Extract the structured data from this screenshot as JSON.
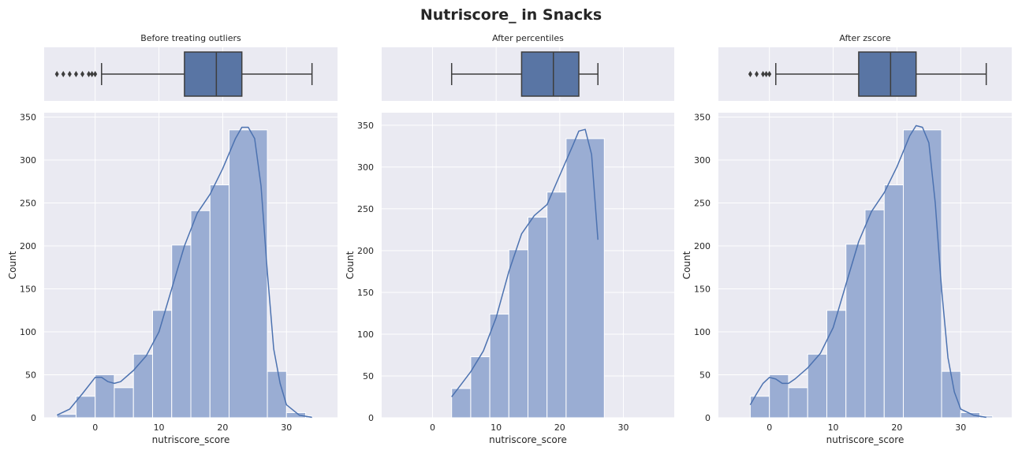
{
  "figure": {
    "suptitle": "Nutriscore_ in Snacks",
    "colors": {
      "background": "#eaeaf2",
      "grid": "#ffffff",
      "box_fill": "#5975a4",
      "box_edge": "#3d3d3d",
      "hist_fill": "#9aadd3",
      "kde_line": "#4c72b0"
    }
  },
  "chart_data": [
    {
      "type": "boxplot",
      "title": "Before treating outliers",
      "xlim": [
        -8,
        38
      ],
      "xticks": [
        0,
        10,
        20,
        30
      ],
      "box": {
        "whisker_low": 1,
        "q1": 14,
        "median": 19,
        "q3": 23,
        "whisker_high": 34
      },
      "outliers": [
        -6,
        -5,
        -4,
        -3,
        -2,
        -1,
        -0.5,
        0
      ]
    },
    {
      "type": "boxplot",
      "title": "After percentiles",
      "xlim": [
        -8,
        38
      ],
      "xticks": [
        0,
        10,
        20,
        30
      ],
      "box": {
        "whisker_low": 3,
        "q1": 14,
        "median": 19,
        "q3": 23,
        "whisker_high": 26
      },
      "outliers": []
    },
    {
      "type": "boxplot",
      "title": "After zscore",
      "xlim": [
        -8,
        38
      ],
      "xticks": [
        0,
        10,
        20,
        30
      ],
      "box": {
        "whisker_low": 1,
        "q1": 14,
        "median": 19,
        "q3": 23,
        "whisker_high": 34
      },
      "outliers": [
        -3,
        -2,
        -1,
        -0.5,
        0
      ]
    },
    {
      "type": "bar",
      "subtype": "histogram_with_kde",
      "xlabel": "nutriscore_score",
      "ylabel": "Count",
      "xlim": [
        -8,
        38
      ],
      "ylim": [
        0,
        355
      ],
      "xticks": [
        0,
        10,
        20,
        30
      ],
      "yticks": [
        0,
        50,
        100,
        150,
        200,
        250,
        300,
        350
      ],
      "bins": [
        {
          "x0": -6,
          "x1": -3,
          "count": 4
        },
        {
          "x0": -3,
          "x1": 0,
          "count": 25
        },
        {
          "x0": 0,
          "x1": 3,
          "count": 50
        },
        {
          "x0": 3,
          "x1": 6,
          "count": 35
        },
        {
          "x0": 6,
          "x1": 9,
          "count": 74
        },
        {
          "x0": 9,
          "x1": 12,
          "count": 125
        },
        {
          "x0": 12,
          "x1": 15,
          "count": 201
        },
        {
          "x0": 15,
          "x1": 18,
          "count": 241
        },
        {
          "x0": 18,
          "x1": 21,
          "count": 271
        },
        {
          "x0": 21,
          "x1": 27,
          "count": 335
        },
        {
          "x0": 27,
          "x1": 30,
          "count": 54
        },
        {
          "x0": 30,
          "x1": 33,
          "count": 6
        },
        {
          "x0": 33,
          "x1": 34,
          "count": 2
        }
      ],
      "kde": [
        [
          -6,
          3
        ],
        [
          -4,
          10
        ],
        [
          -2,
          28
        ],
        [
          0,
          47
        ],
        [
          1,
          47
        ],
        [
          2,
          42
        ],
        [
          3,
          40
        ],
        [
          4,
          42
        ],
        [
          6,
          55
        ],
        [
          8,
          72
        ],
        [
          10,
          100
        ],
        [
          12,
          150
        ],
        [
          14,
          200
        ],
        [
          16,
          238
        ],
        [
          18,
          260
        ],
        [
          20,
          290
        ],
        [
          22,
          325
        ],
        [
          23,
          338
        ],
        [
          24,
          338
        ],
        [
          25,
          325
        ],
        [
          26,
          270
        ],
        [
          27,
          170
        ],
        [
          28,
          80
        ],
        [
          29,
          40
        ],
        [
          30,
          15
        ],
        [
          32,
          3
        ],
        [
          34,
          0.5
        ]
      ]
    },
    {
      "type": "bar",
      "subtype": "histogram_with_kde",
      "xlabel": "nutriscore_score",
      "ylabel": "Count",
      "xlim": [
        -8,
        38
      ],
      "ylim": [
        0,
        365
      ],
      "xticks": [
        0,
        10,
        20,
        30
      ],
      "yticks": [
        0,
        50,
        100,
        150,
        200,
        250,
        300,
        350
      ],
      "bins": [
        {
          "x0": 3,
          "x1": 6,
          "count": 35
        },
        {
          "x0": 6,
          "x1": 9,
          "count": 73
        },
        {
          "x0": 9,
          "x1": 12,
          "count": 124
        },
        {
          "x0": 12,
          "x1": 15,
          "count": 201
        },
        {
          "x0": 15,
          "x1": 18,
          "count": 240
        },
        {
          "x0": 18,
          "x1": 21,
          "count": 270
        },
        {
          "x0": 21,
          "x1": 27,
          "count": 334
        }
      ],
      "kde": [
        [
          3,
          25
        ],
        [
          4,
          35
        ],
        [
          6,
          55
        ],
        [
          8,
          80
        ],
        [
          10,
          120
        ],
        [
          12,
          175
        ],
        [
          14,
          220
        ],
        [
          16,
          242
        ],
        [
          18,
          255
        ],
        [
          20,
          290
        ],
        [
          22,
          325
        ],
        [
          23,
          343
        ],
        [
          24,
          345
        ],
        [
          25,
          315
        ],
        [
          26,
          213
        ]
      ]
    },
    {
      "type": "bar",
      "subtype": "histogram_with_kde",
      "xlabel": "nutriscore_score",
      "ylabel": "Count",
      "xlim": [
        -8,
        38
      ],
      "ylim": [
        0,
        355
      ],
      "xticks": [
        0,
        10,
        20,
        30
      ],
      "yticks": [
        0,
        50,
        100,
        150,
        200,
        250,
        300,
        350
      ],
      "bins": [
        {
          "x0": -3,
          "x1": 0,
          "count": 25
        },
        {
          "x0": 0,
          "x1": 3,
          "count": 50
        },
        {
          "x0": 3,
          "x1": 6,
          "count": 35
        },
        {
          "x0": 6,
          "x1": 9,
          "count": 74
        },
        {
          "x0": 9,
          "x1": 12,
          "count": 125
        },
        {
          "x0": 12,
          "x1": 15,
          "count": 202
        },
        {
          "x0": 15,
          "x1": 18,
          "count": 242
        },
        {
          "x0": 18,
          "x1": 21,
          "count": 271
        },
        {
          "x0": 21,
          "x1": 27,
          "count": 335
        },
        {
          "x0": 27,
          "x1": 30,
          "count": 54
        },
        {
          "x0": 30,
          "x1": 33,
          "count": 6
        },
        {
          "x0": 33,
          "x1": 35,
          "count": 2
        }
      ],
      "kde": [
        [
          -3,
          15
        ],
        [
          -2,
          28
        ],
        [
          -1,
          40
        ],
        [
          0,
          47
        ],
        [
          1,
          45
        ],
        [
          2,
          40
        ],
        [
          3,
          40
        ],
        [
          4,
          45
        ],
        [
          6,
          58
        ],
        [
          8,
          75
        ],
        [
          10,
          105
        ],
        [
          12,
          155
        ],
        [
          14,
          205
        ],
        [
          16,
          240
        ],
        [
          18,
          262
        ],
        [
          20,
          292
        ],
        [
          22,
          328
        ],
        [
          23,
          340
        ],
        [
          24,
          338
        ],
        [
          25,
          320
        ],
        [
          26,
          250
        ],
        [
          27,
          150
        ],
        [
          28,
          70
        ],
        [
          29,
          30
        ],
        [
          30,
          10
        ],
        [
          32,
          3
        ],
        [
          34,
          0.5
        ]
      ]
    }
  ]
}
